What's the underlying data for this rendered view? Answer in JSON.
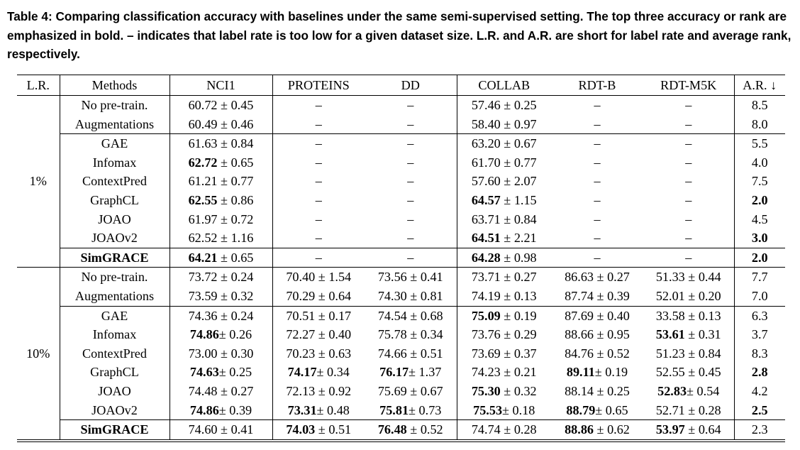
{
  "caption": "Table 4: Comparing classification accuracy with baselines under the same semi-supervised setting. The top three accuracy or rank are emphasized in bold. – indicates that label rate is too low for a given dataset size. L.R. and A.R. are short for label rate and average rank, respectively.",
  "table": {
    "headers": [
      "L.R.",
      "Methods",
      "NCI1",
      "PROTEINS",
      "DD",
      "COLLAB",
      "RDT-B",
      "RDT-M5K",
      "A.R. ↓"
    ],
    "groups": [
      {
        "label_rate": "1%",
        "rows": [
          {
            "method": "No pre-train.",
            "method_bold": false,
            "cells": [
              {
                "v": "60.72",
                "pm": "± 0.45",
                "b": false
              },
              {
                "v": "–",
                "pm": "",
                "b": false
              },
              {
                "v": "–",
                "pm": "",
                "b": false
              },
              {
                "v": "57.46",
                "pm": "± 0.25",
                "b": false
              },
              {
                "v": "–",
                "pm": "",
                "b": false
              },
              {
                "v": "–",
                "pm": "",
                "b": false
              }
            ],
            "ar": "8.5",
            "ar_bold": false
          },
          {
            "method": "Augmentations",
            "method_bold": false,
            "cells": [
              {
                "v": "60.49",
                "pm": "± 0.46",
                "b": false
              },
              {
                "v": "–",
                "pm": "",
                "b": false
              },
              {
                "v": "–",
                "pm": "",
                "b": false
              },
              {
                "v": "58.40",
                "pm": "± 0.97",
                "b": false
              },
              {
                "v": "–",
                "pm": "",
                "b": false
              },
              {
                "v": "–",
                "pm": "",
                "b": false
              }
            ],
            "ar": "8.0",
            "ar_bold": false
          },
          {
            "method": "GAE",
            "method_bold": false,
            "sep": true,
            "cells": [
              {
                "v": "61.63",
                "pm": "± 0.84",
                "b": false
              },
              {
                "v": "–",
                "pm": "",
                "b": false
              },
              {
                "v": "–",
                "pm": "",
                "b": false
              },
              {
                "v": "63.20",
                "pm": "± 0.67",
                "b": false
              },
              {
                "v": "–",
                "pm": "",
                "b": false
              },
              {
                "v": "–",
                "pm": "",
                "b": false
              }
            ],
            "ar": "5.5",
            "ar_bold": false
          },
          {
            "method": "Infomax",
            "method_bold": false,
            "cells": [
              {
                "v": "62.72",
                "pm": "± 0.65",
                "b": true
              },
              {
                "v": "–",
                "pm": "",
                "b": false
              },
              {
                "v": "–",
                "pm": "",
                "b": false
              },
              {
                "v": "61.70",
                "pm": "± 0.77",
                "b": false
              },
              {
                "v": "–",
                "pm": "",
                "b": false
              },
              {
                "v": "–",
                "pm": "",
                "b": false
              }
            ],
            "ar": "4.0",
            "ar_bold": false
          },
          {
            "method": "ContextPred",
            "method_bold": false,
            "cells": [
              {
                "v": "61.21",
                "pm": "± 0.77",
                "b": false
              },
              {
                "v": "–",
                "pm": "",
                "b": false
              },
              {
                "v": "–",
                "pm": "",
                "b": false
              },
              {
                "v": "57.60",
                "pm": "± 2.07",
                "b": false
              },
              {
                "v": "–",
                "pm": "",
                "b": false
              },
              {
                "v": "–",
                "pm": "",
                "b": false
              }
            ],
            "ar": "7.5",
            "ar_bold": false
          },
          {
            "method": "GraphCL",
            "method_bold": false,
            "cells": [
              {
                "v": "62.55",
                "pm": "± 0.86",
                "b": true
              },
              {
                "v": "–",
                "pm": "",
                "b": false
              },
              {
                "v": "–",
                "pm": "",
                "b": false
              },
              {
                "v": "64.57",
                "pm": "± 1.15",
                "b": true
              },
              {
                "v": "–",
                "pm": "",
                "b": false
              },
              {
                "v": "–",
                "pm": "",
                "b": false
              }
            ],
            "ar": "2.0",
            "ar_bold": true
          },
          {
            "method": "JOAO",
            "method_bold": false,
            "cells": [
              {
                "v": "61.97",
                "pm": "± 0.72",
                "b": false
              },
              {
                "v": "–",
                "pm": "",
                "b": false
              },
              {
                "v": "–",
                "pm": "",
                "b": false
              },
              {
                "v": "63.71",
                "pm": "± 0.84",
                "b": false
              },
              {
                "v": "–",
                "pm": "",
                "b": false
              },
              {
                "v": "–",
                "pm": "",
                "b": false
              }
            ],
            "ar": "4.5",
            "ar_bold": false
          },
          {
            "method": "JOAOv2",
            "method_bold": false,
            "cells": [
              {
                "v": "62.52",
                "pm": "± 1.16",
                "b": false
              },
              {
                "v": "–",
                "pm": "",
                "b": false
              },
              {
                "v": "–",
                "pm": "",
                "b": false
              },
              {
                "v": "64.51",
                "pm": "± 2.21",
                "b": true
              },
              {
                "v": "–",
                "pm": "",
                "b": false
              },
              {
                "v": "–",
                "pm": "",
                "b": false
              }
            ],
            "ar": "3.0",
            "ar_bold": true
          },
          {
            "method": "SimGRACE",
            "method_bold": true,
            "sep": true,
            "cells": [
              {
                "v": "64.21",
                "pm": "± 0.65",
                "b": true
              },
              {
                "v": "–",
                "pm": "",
                "b": false
              },
              {
                "v": "–",
                "pm": "",
                "b": false
              },
              {
                "v": "64.28",
                "pm": "± 0.98",
                "b": true
              },
              {
                "v": "–",
                "pm": "",
                "b": false
              },
              {
                "v": "–",
                "pm": "",
                "b": false
              }
            ],
            "ar": "2.0",
            "ar_bold": true
          }
        ]
      },
      {
        "label_rate": "10%",
        "rows": [
          {
            "method": "No pre-train.",
            "method_bold": false,
            "cells": [
              {
                "v": "73.72",
                "pm": "± 0.24",
                "b": false
              },
              {
                "v": "70.40",
                "pm": "± 1.54",
                "b": false
              },
              {
                "v": "73.56",
                "pm": "± 0.41",
                "b": false
              },
              {
                "v": "73.71",
                "pm": "± 0.27",
                "b": false
              },
              {
                "v": "86.63",
                "pm": "± 0.27",
                "b": false
              },
              {
                "v": "51.33",
                "pm": "± 0.44",
                "b": false
              }
            ],
            "ar": "7.7",
            "ar_bold": false
          },
          {
            "method": "Augmentations",
            "method_bold": false,
            "cells": [
              {
                "v": "73.59",
                "pm": "± 0.32",
                "b": false
              },
              {
                "v": "70.29",
                "pm": "± 0.64",
                "b": false
              },
              {
                "v": "74.30",
                "pm": "± 0.81",
                "b": false
              },
              {
                "v": "74.19",
                "pm": "± 0.13",
                "b": false
              },
              {
                "v": "87.74",
                "pm": "± 0.39",
                "b": false
              },
              {
                "v": "52.01",
                "pm": "± 0.20",
                "b": false
              }
            ],
            "ar": "7.0",
            "ar_bold": false
          },
          {
            "method": "GAE",
            "method_bold": false,
            "sep": true,
            "cells": [
              {
                "v": "74.36",
                "pm": "± 0.24",
                "b": false
              },
              {
                "v": "70.51",
                "pm": "± 0.17",
                "b": false
              },
              {
                "v": "74.54",
                "pm": "± 0.68",
                "b": false
              },
              {
                "v": "75.09",
                "pm": "± 0.19",
                "b": true
              },
              {
                "v": "87.69",
                "pm": "± 0.40",
                "b": false
              },
              {
                "v": "33.58",
                "pm": "± 0.13",
                "b": false
              }
            ],
            "ar": "6.3",
            "ar_bold": false
          },
          {
            "method": "Infomax",
            "method_bold": false,
            "cells": [
              {
                "v": "74.86",
                "pm": "± 0.26",
                "b": true,
                "tight": true
              },
              {
                "v": "72.27",
                "pm": "± 0.40",
                "b": false
              },
              {
                "v": "75.78",
                "pm": "± 0.34",
                "b": false
              },
              {
                "v": "73.76",
                "pm": "± 0.29",
                "b": false
              },
              {
                "v": "88.66",
                "pm": "± 0.95",
                "b": false
              },
              {
                "v": "53.61",
                "pm": "± 0.31",
                "b": true
              }
            ],
            "ar": "3.7",
            "ar_bold": false
          },
          {
            "method": "ContextPred",
            "method_bold": false,
            "cells": [
              {
                "v": "73.00",
                "pm": "± 0.30",
                "b": false
              },
              {
                "v": "70.23",
                "pm": "± 0.63",
                "b": false
              },
              {
                "v": "74.66",
                "pm": "± 0.51",
                "b": false
              },
              {
                "v": "73.69",
                "pm": "± 0.37",
                "b": false
              },
              {
                "v": "84.76",
                "pm": "± 0.52",
                "b": false
              },
              {
                "v": "51.23",
                "pm": "± 0.84",
                "b": false
              }
            ],
            "ar": "8.3",
            "ar_bold": false
          },
          {
            "method": "GraphCL",
            "method_bold": false,
            "cells": [
              {
                "v": "74.63",
                "pm": "± 0.25",
                "b": true,
                "tight": true
              },
              {
                "v": "74.17",
                "pm": "± 0.34",
                "b": true,
                "tight": true
              },
              {
                "v": "76.17",
                "pm": "± 1.37",
                "b": true,
                "tight": true
              },
              {
                "v": "74.23",
                "pm": "± 0.21",
                "b": false
              },
              {
                "v": "89.11",
                "pm": "± 0.19",
                "b": true,
                "tight": true
              },
              {
                "v": "52.55",
                "pm": "± 0.45",
                "b": false
              }
            ],
            "ar": "2.8",
            "ar_bold": true
          },
          {
            "method": "JOAO",
            "method_bold": false,
            "cells": [
              {
                "v": "74.48",
                "pm": "± 0.27",
                "b": false
              },
              {
                "v": "72.13",
                "pm": "± 0.92",
                "b": false
              },
              {
                "v": "75.69",
                "pm": "± 0.67",
                "b": false
              },
              {
                "v": "75.30",
                "pm": "± 0.32",
                "b": true
              },
              {
                "v": "88.14",
                "pm": "± 0.25",
                "b": false
              },
              {
                "v": "52.83",
                "pm": "± 0.54",
                "b": true,
                "tight": true
              }
            ],
            "ar": "4.2",
            "ar_bold": false
          },
          {
            "method": "JOAOv2",
            "method_bold": false,
            "cells": [
              {
                "v": "74.86",
                "pm": "± 0.39",
                "b": true,
                "tight": true
              },
              {
                "v": "73.31",
                "pm": "± 0.48",
                "b": true,
                "tight": true
              },
              {
                "v": "75.81",
                "pm": "± 0.73",
                "b": true,
                "tight": true
              },
              {
                "v": "75.53",
                "pm": "± 0.18",
                "b": true,
                "tight": true
              },
              {
                "v": "88.79",
                "pm": "± 0.65",
                "b": true,
                "tight": true
              },
              {
                "v": "52.71",
                "pm": "± 0.28",
                "b": false
              }
            ],
            "ar": "2.5",
            "ar_bold": true
          },
          {
            "method": "SimGRACE",
            "method_bold": true,
            "sep": true,
            "cells": [
              {
                "v": "74.60",
                "pm": "± 0.41",
                "b": false
              },
              {
                "v": "74.03",
                "pm": "± 0.51",
                "b": true
              },
              {
                "v": "76.48",
                "pm": "± 0.52",
                "b": true
              },
              {
                "v": "74.74",
                "pm": "± 0.28",
                "b": false
              },
              {
                "v": "88.86",
                "pm": "± 0.62",
                "b": true
              },
              {
                "v": "53.97",
                "pm": "± 0.64",
                "b": true
              }
            ],
            "ar": "2.3",
            "ar_bold": false
          }
        ]
      }
    ]
  }
}
